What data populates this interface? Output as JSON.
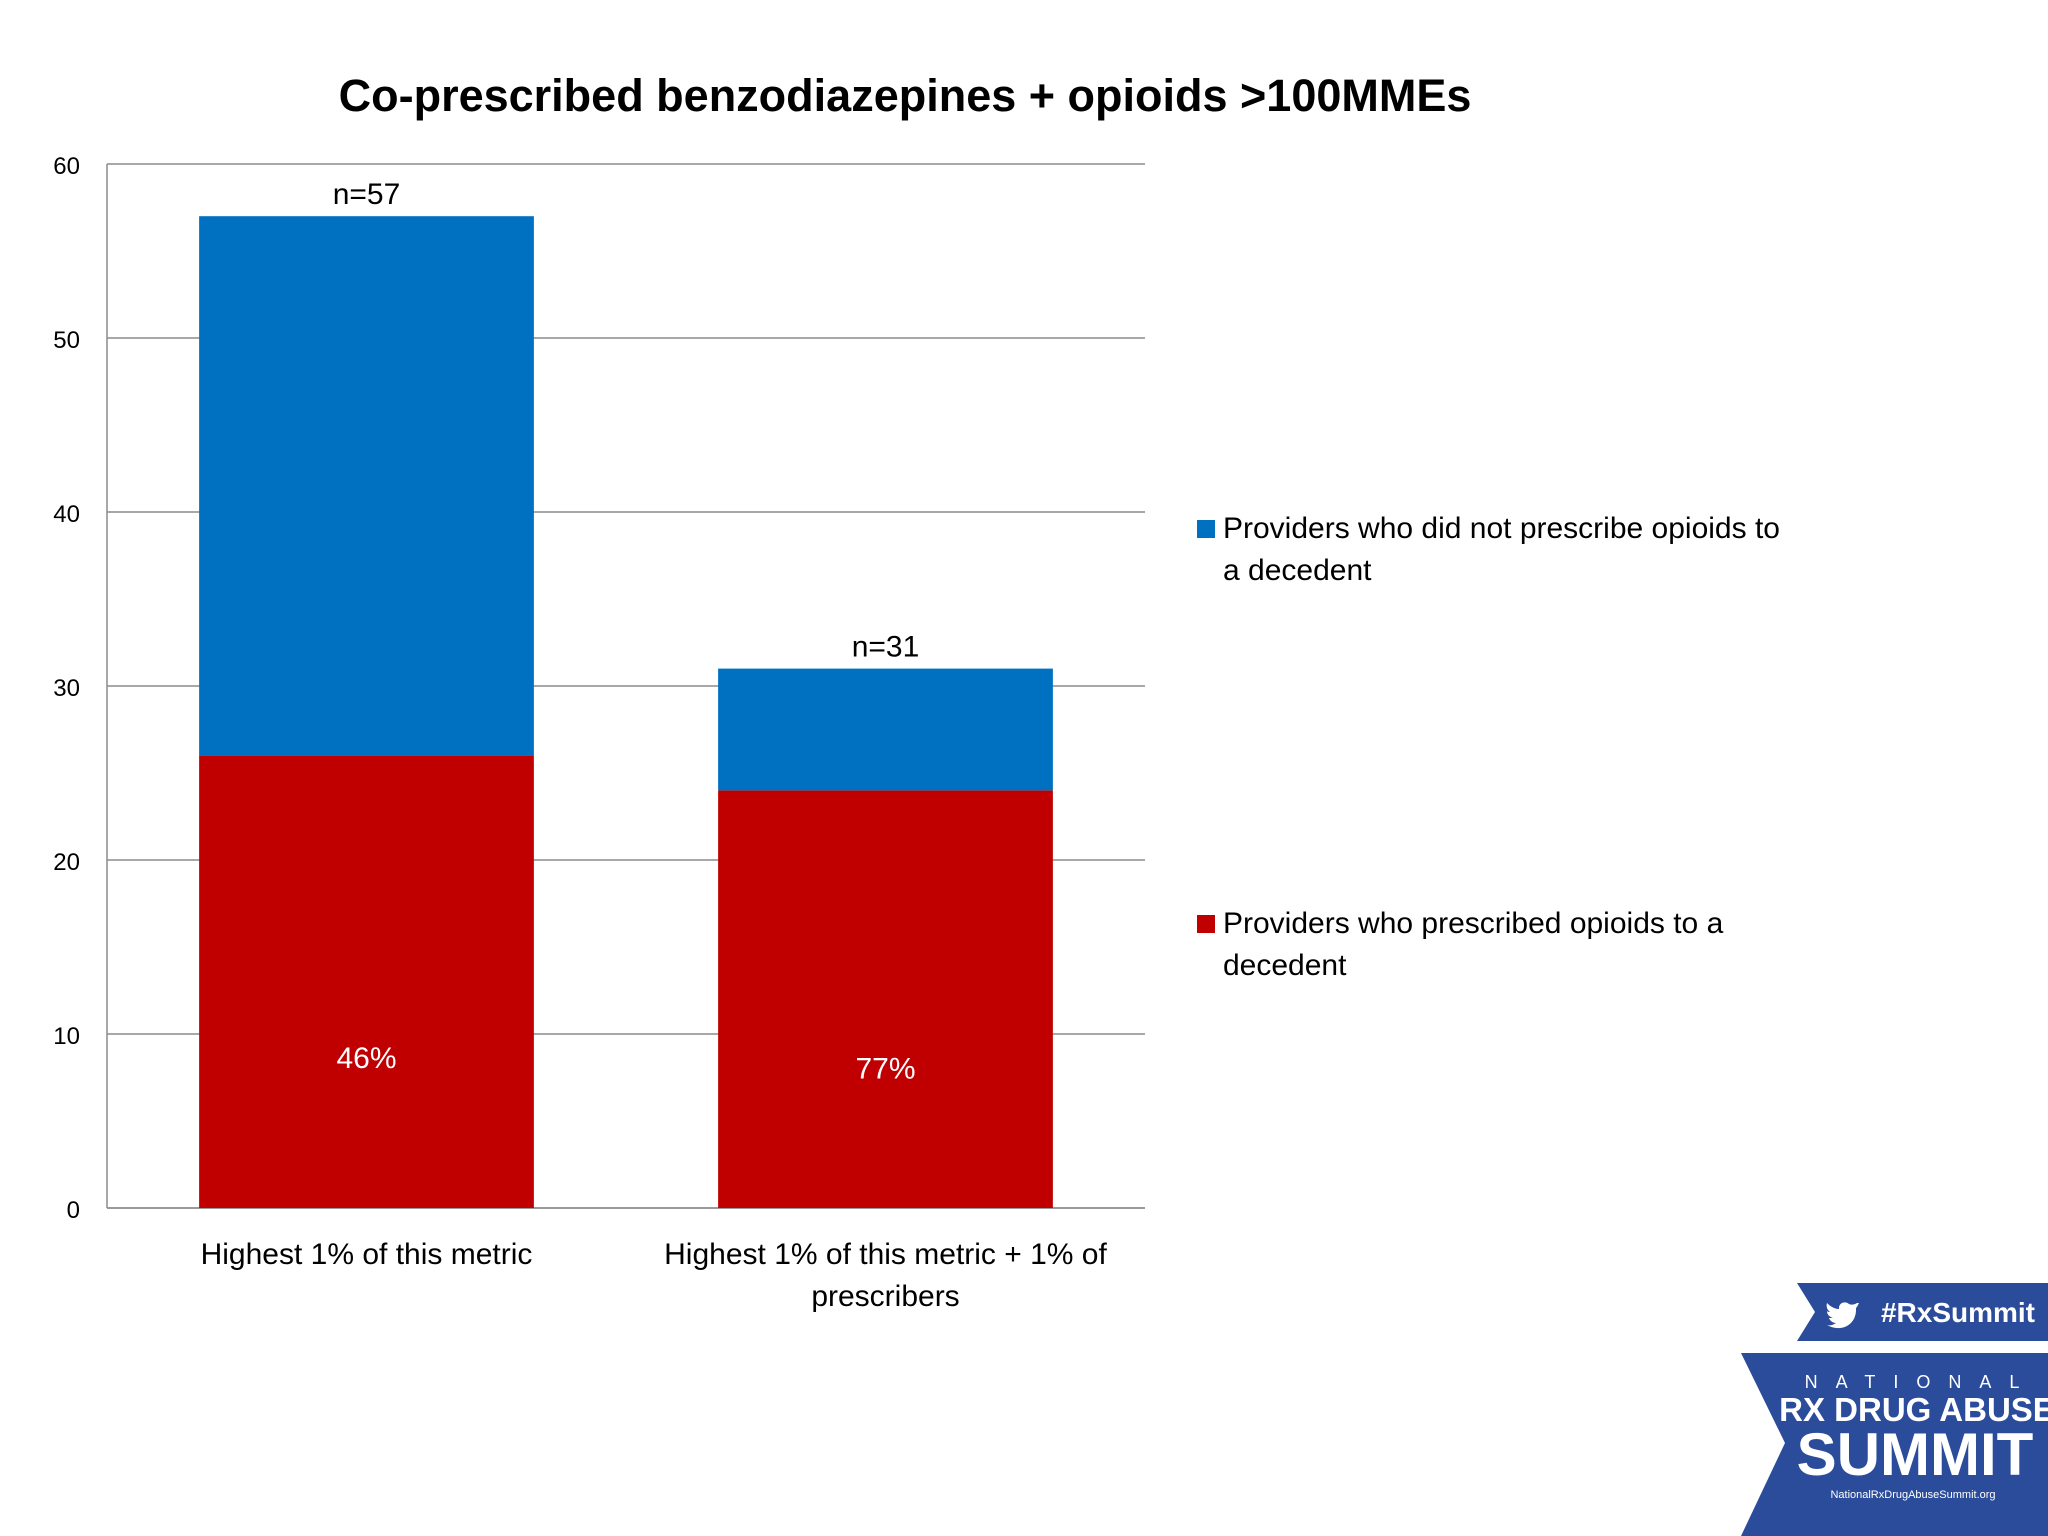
{
  "chart_data": {
    "type": "bar",
    "stacked": true,
    "title": "Co-prescribed benzodiazepines + opioids >100MMEs",
    "categories": [
      "Highest 1% of this metric",
      "Highest 1% of this metric + 1% of prescribers"
    ],
    "ylim": [
      0,
      60
    ],
    "yticks": [
      "0",
      "10",
      "20",
      "30",
      "40",
      "50",
      "60"
    ],
    "grid": true,
    "legend_position": "right",
    "series": [
      {
        "name": "Providers who prescribed opioids to a decedent",
        "color": "#C00000",
        "values": [
          26,
          24
        ],
        "labels": [
          "46%",
          "77%"
        ]
      },
      {
        "name": "Providers who did not prescribe opioids to a decedent",
        "color": "#0070C0",
        "values": [
          31,
          7
        ]
      }
    ],
    "totals_labels": [
      "n=57",
      "n=31"
    ]
  },
  "logo": {
    "hashtag": "#RxSummit",
    "line1": "NATIONAL",
    "line2": "RX DRUG ABUSE",
    "line3": "SUMMIT",
    "url": "NationalRxDrugAbuseSummit.org"
  }
}
